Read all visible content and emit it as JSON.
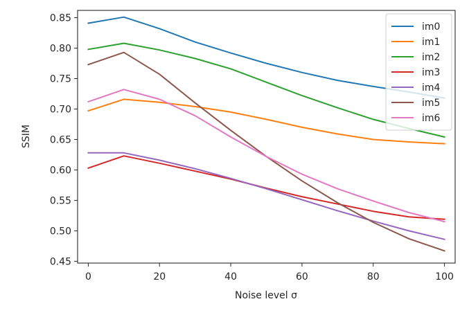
{
  "chart_data": {
    "type": "line",
    "xlabel": "Noise level σ",
    "ylabel": "SSIM",
    "xlim": [
      -3,
      103
    ],
    "ylim": [
      0.447,
      0.862
    ],
    "xticks": [
      0,
      20,
      40,
      60,
      80,
      100
    ],
    "yticks": [
      0.45,
      0.5,
      0.55,
      0.6,
      0.65,
      0.7,
      0.75,
      0.8,
      0.85
    ],
    "x": [
      0,
      10,
      20,
      30,
      40,
      50,
      60,
      70,
      80,
      90,
      100
    ],
    "grid": false,
    "legend_position": "top-right",
    "series": [
      {
        "name": "im0",
        "color": "#1f77b4",
        "values": [
          0.841,
          0.851,
          0.832,
          0.81,
          0.792,
          0.775,
          0.76,
          0.747,
          0.737,
          0.728,
          0.718
        ]
      },
      {
        "name": "im1",
        "color": "#ff7f0e",
        "values": [
          0.697,
          0.716,
          0.711,
          0.704,
          0.695,
          0.683,
          0.67,
          0.659,
          0.65,
          0.646,
          0.643
        ]
      },
      {
        "name": "im2",
        "color": "#2ca02c",
        "values": [
          0.798,
          0.808,
          0.797,
          0.783,
          0.766,
          0.744,
          0.722,
          0.702,
          0.683,
          0.668,
          0.654
        ]
      },
      {
        "name": "im3",
        "color": "#d62728",
        "values": [
          0.603,
          0.623,
          0.611,
          0.598,
          0.585,
          0.57,
          0.556,
          0.544,
          0.532,
          0.523,
          0.519
        ]
      },
      {
        "name": "im4",
        "color": "#9467bd",
        "values": [
          0.628,
          0.628,
          0.616,
          0.602,
          0.586,
          0.569,
          0.551,
          0.533,
          0.516,
          0.5,
          0.486
        ]
      },
      {
        "name": "im5",
        "color": "#8c564b",
        "values": [
          0.773,
          0.793,
          0.757,
          0.71,
          0.665,
          0.622,
          0.582,
          0.546,
          0.514,
          0.487,
          0.467
        ]
      },
      {
        "name": "im6",
        "color": "#e377c2",
        "values": [
          0.712,
          0.732,
          0.716,
          0.689,
          0.654,
          0.622,
          0.593,
          0.569,
          0.549,
          0.53,
          0.515
        ]
      }
    ]
  }
}
